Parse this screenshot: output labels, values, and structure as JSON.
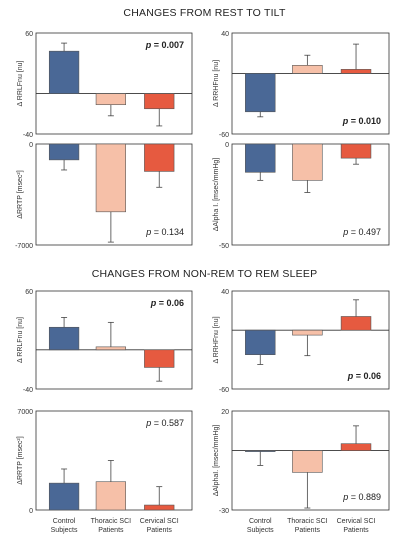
{
  "section_titles": {
    "top": "CHANGES FROM REST TO TILT",
    "bottom": "CHANGES FROM NON-REM TO REM SLEEP"
  },
  "colors": {
    "control": "#4a6896",
    "thoracic": "#f6c0a8",
    "cervical": "#e65a40",
    "axis": "#333333"
  },
  "group_labels": [
    [
      "Control",
      "Subjects"
    ],
    [
      "Thoracic SCI",
      "Patients"
    ],
    [
      "Cervical SCI",
      "Patients"
    ]
  ],
  "chart_data": [
    {
      "type": "bar",
      "id": "rest-tilt-rrlfnu",
      "section": "CHANGES FROM REST TO TILT",
      "ylabel": "Δ RRLFnu [nu]",
      "ylim": [
        -40,
        60
      ],
      "ticks": [
        "60",
        "-40"
      ],
      "zero_line": true,
      "categories": [
        "Control Subjects",
        "Thoracic SCI Patients",
        "Cervical SCI Patients"
      ],
      "values": [
        42,
        -11,
        -15
      ],
      "errors": [
        8,
        11,
        17
      ],
      "p_text": "p = 0.007",
      "p_bold": true,
      "p_pos": "top-right"
    },
    {
      "type": "bar",
      "id": "rest-tilt-rrhfnu",
      "section": "CHANGES FROM REST TO TILT",
      "ylabel": "Δ RRHFnu [nu]",
      "ylim": [
        -60,
        40
      ],
      "ticks": [
        "40",
        "-60"
      ],
      "zero_line": true,
      "categories": [
        "Control Subjects",
        "Thoracic SCI Patients",
        "Cervical SCI Patients"
      ],
      "values": [
        -38,
        8,
        4
      ],
      "errors": [
        5,
        10,
        25
      ],
      "p_text": "p = 0.010",
      "p_bold": true,
      "p_pos": "bottom-right"
    },
    {
      "type": "bar",
      "id": "rest-tilt-rrtp",
      "section": "CHANGES FROM REST TO TILT",
      "ylabel": "ΔRRTP [msec²]",
      "ylim": [
        -7000,
        0
      ],
      "ticks": [
        "0",
        "-7000"
      ],
      "zero_line": false,
      "categories": [
        "Control Subjects",
        "Thoracic SCI Patients",
        "Cervical SCI Patients"
      ],
      "values": [
        -1100,
        -4700,
        -1900
      ],
      "errors": [
        700,
        2100,
        1100
      ],
      "p_text": "p = 0.134",
      "p_bold": false,
      "p_pos": "bottom-right"
    },
    {
      "type": "bar",
      "id": "rest-tilt-alpha",
      "section": "CHANGES FROM REST TO TILT",
      "ylabel": "ΔAlpha I. [msec/mmHg]",
      "ylim": [
        -50,
        0
      ],
      "ticks": [
        "0",
        "-50"
      ],
      "zero_line": false,
      "categories": [
        "Control Subjects",
        "Thoracic SCI Patients",
        "Cervical SCI Patients"
      ],
      "values": [
        -14,
        -18,
        -7
      ],
      "errors": [
        4,
        6,
        3
      ],
      "p_text": "p = 0.497",
      "p_bold": false,
      "p_pos": "bottom-right"
    },
    {
      "type": "bar",
      "id": "sleep-rrlfnu",
      "section": "CHANGES FROM NON-REM TO REM SLEEP",
      "ylabel": "Δ RRLFnu [nu]",
      "ylim": [
        -40,
        60
      ],
      "ticks": [
        "60",
        "-40"
      ],
      "zero_line": true,
      "categories": [
        "Control Subjects",
        "Thoracic SCI Patients",
        "Cervical SCI Patients"
      ],
      "values": [
        23,
        3,
        -18
      ],
      "errors": [
        10,
        25,
        14
      ],
      "p_text": "p = 0.06",
      "p_bold": true,
      "p_pos": "top-right"
    },
    {
      "type": "bar",
      "id": "sleep-rrhfnu",
      "section": "CHANGES FROM NON-REM TO REM SLEEP",
      "ylabel": "Δ RRHFnu [nu]",
      "ylim": [
        -60,
        40
      ],
      "ticks": [
        "40",
        "-60"
      ],
      "zero_line": true,
      "categories": [
        "Control Subjects",
        "Thoracic SCI Patients",
        "Cervical SCI Patients"
      ],
      "values": [
        -25,
        -5,
        14
      ],
      "errors": [
        10,
        21,
        17
      ],
      "p_text": "p = 0.06",
      "p_bold": true,
      "p_pos": "bottom-right"
    },
    {
      "type": "bar",
      "id": "sleep-rrtp",
      "section": "CHANGES FROM NON-REM TO REM SLEEP",
      "ylabel": "ΔRRTP [msec²]",
      "ylim": [
        0,
        7000
      ],
      "ticks": [
        "7000",
        "0"
      ],
      "zero_line": false,
      "categories": [
        "Control Subjects",
        "Thoracic SCI Patients",
        "Cervical SCI Patients"
      ],
      "values": [
        1900,
        2000,
        350
      ],
      "errors": [
        1000,
        1500,
        1300
      ],
      "p_text": "p = 0.587",
      "p_bold": false,
      "p_pos": "top-right"
    },
    {
      "type": "bar",
      "id": "sleep-alpha",
      "section": "CHANGES FROM NON-REM TO REM SLEEP",
      "ylabel": "ΔAlphaI. [msec/mmHg]",
      "ylim": [
        -30,
        20
      ],
      "ticks": [
        "20",
        "-30"
      ],
      "zero_line": true,
      "categories": [
        "Control Subjects",
        "Thoracic SCI Patients",
        "Cervical SCI Patients"
      ],
      "values": [
        -0.5,
        -11,
        3.5
      ],
      "errors": [
        7,
        18,
        9
      ],
      "p_text": "p = 0.889",
      "p_bold": false,
      "p_pos": "bottom-right"
    }
  ]
}
